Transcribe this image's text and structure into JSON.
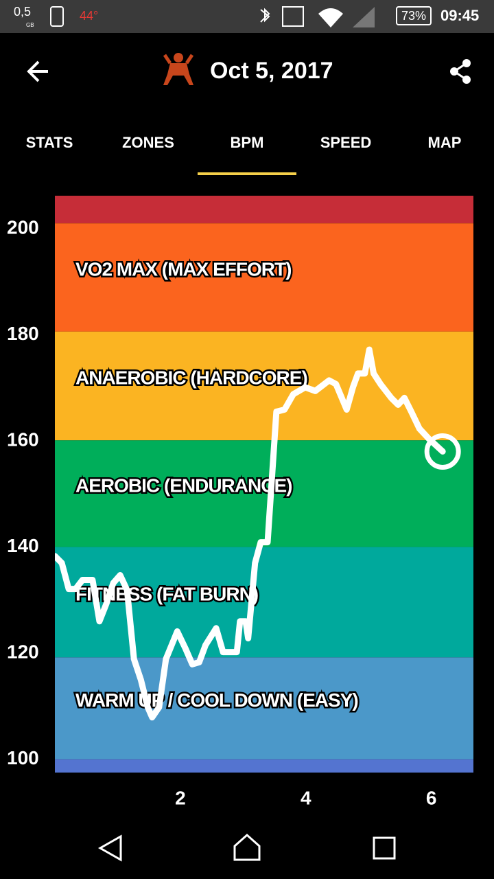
{
  "status_bar": {
    "data_amount": "0,5",
    "data_unit": "GB",
    "temperature": "44°",
    "battery": "73%",
    "time": "09:45"
  },
  "header": {
    "title": "Oct 5, 2017"
  },
  "tabs": {
    "items": [
      "STATS",
      "ZONES",
      "BPM",
      "SPEED",
      "MAP"
    ],
    "selected": 2
  },
  "chart_data": {
    "type": "line",
    "x": [
      0,
      0.11,
      0.22,
      0.33,
      0.44,
      0.6,
      0.71,
      0.82,
      0.93,
      1.04,
      1.15,
      1.26,
      1.37,
      1.48,
      1.55,
      1.66,
      1.77,
      1.95,
      2.08,
      2.19,
      2.3,
      2.4,
      2.57,
      2.68,
      2.9,
      2.95,
      3.04,
      3.08,
      3.19,
      3.28,
      3.39,
      3.53,
      3.66,
      3.8,
      3.99,
      4.15,
      4.37,
      4.48,
      4.65,
      4.75,
      4.83,
      4.94,
      5.01,
      5.08,
      5.19,
      5.36,
      5.47,
      5.57,
      5.68,
      5.81,
      5.96,
      6.18
    ],
    "series": [
      {
        "color": "#ffffff",
        "values": [
          138.3,
          137.0,
          132.1,
          132.1,
          133.8,
          133.8,
          126,
          129.3,
          133.2,
          134.7,
          131.9,
          118.9,
          115,
          109.8,
          107.9,
          109.8,
          118.9,
          124.1,
          120.9,
          117.9,
          118.3,
          121.5,
          124.7,
          120.2,
          120.2,
          126,
          126,
          122.8,
          137,
          140.9,
          140.9,
          165.5,
          165.9,
          168.8,
          170.1,
          169.4,
          171.4,
          170.7,
          165.9,
          170.1,
          172.7,
          172.7,
          177.2,
          172.7,
          170.7,
          168.1,
          166.8,
          168.1,
          165.5,
          162.3,
          160.4,
          158.0
        ]
      }
    ],
    "xlim": [
      0,
      6.67
    ],
    "ylim": [
      97.5,
      206.2
    ],
    "xticks": [
      2,
      4,
      6
    ],
    "yticks": [
      100,
      120,
      140,
      160,
      180,
      200
    ],
    "zones": [
      {
        "from": 201,
        "to": 206.2,
        "color": "#c62d38"
      },
      {
        "label": "VO2 MAX (MAX EFFORT)",
        "from": 180.6,
        "to": 201,
        "color": "#fb641e"
      },
      {
        "label": "ANAEROBIC (HARDCORE)",
        "from": 160.1,
        "to": 180.6,
        "color": "#fbb422"
      },
      {
        "label": "AEROBIC (ENDURANCE)",
        "from": 140,
        "to": 160.1,
        "color": "#00ae5a"
      },
      {
        "label": "FITNESS (FAT BURN)",
        "from": 119.2,
        "to": 140,
        "color": "#00a99c"
      },
      {
        "label": "WARM UP / COOL DOWN (EASY)",
        "from": 100,
        "to": 119.2,
        "color": "#4b98c9"
      },
      {
        "from": 97.5,
        "to": 100,
        "color": "#5474d0"
      }
    ]
  }
}
